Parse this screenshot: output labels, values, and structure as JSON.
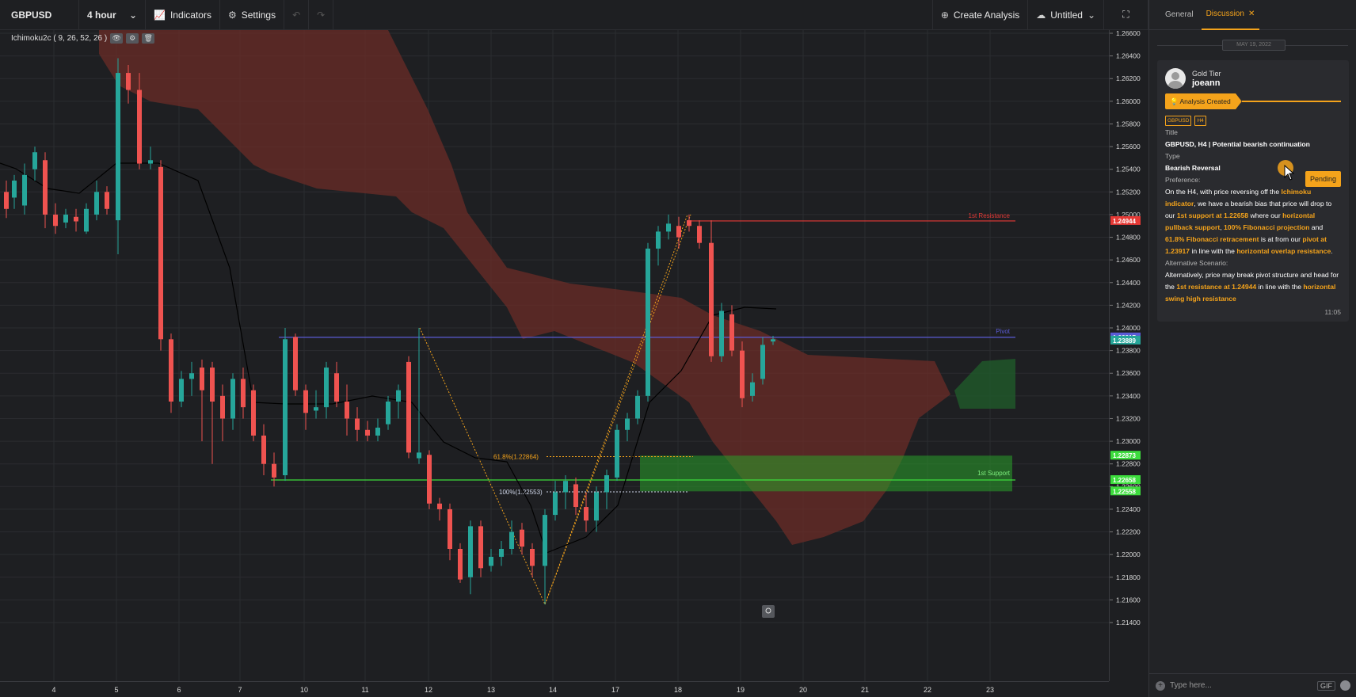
{
  "toolbar": {
    "symbol": "GBPUSD",
    "interval": "4 hour",
    "indicators": "Indicators",
    "settings": "Settings",
    "create_analysis": "Create Analysis",
    "layout_name": "Untitled"
  },
  "indicator": {
    "label": "Ichimoku2c ( 9, 26, 52, 26 )"
  },
  "chart": {
    "price_ticks": [
      "1.26600",
      "1.26400",
      "1.26200",
      "1.26000",
      "1.25800",
      "1.25600",
      "1.25400",
      "1.25200",
      "1.25000",
      "1.24800",
      "1.24600",
      "1.24400",
      "1.24200",
      "1.24000",
      "1.23800",
      "1.23600",
      "1.23400",
      "1.23200",
      "1.23000",
      "1.22800",
      "1.22600",
      "1.22400",
      "1.22200",
      "1.22000",
      "1.21800",
      "1.21600",
      "1.21400"
    ],
    "date_ticks": [
      "4",
      "5",
      "6",
      "7",
      "10",
      "11",
      "12",
      "13",
      "14",
      "17",
      "18",
      "19",
      "20",
      "21",
      "22",
      "23"
    ],
    "levels": {
      "resistance": {
        "label": "1st Resistance",
        "price": 1.24944,
        "tag": "1.24944"
      },
      "pivot": {
        "label": "Pivot",
        "price": 1.23917,
        "tag": "1.23917",
        "tag2": "1.23889"
      },
      "support": {
        "label": "1st Support",
        "price": 1.22658,
        "tag": "1.22658",
        "tag_top": "1.22873",
        "tag_bottom": "1.22558",
        "tag_mid": "1.22600"
      }
    },
    "fib": {
      "f618": "61.8%(1.22864)",
      "f100": "100%(1.22553)"
    },
    "colors": {
      "bull": "#26a69a",
      "bear": "#ef5350",
      "cloud_bear": "#6b2c27",
      "cloud_bull": "#1f5a2a",
      "support_zone": "#2aa12a",
      "resistance": "#e53935",
      "pivot": "#5b5bd6",
      "fib": "#f4a31b"
    }
  },
  "panel": {
    "tabs": [
      "General",
      "Discussion"
    ],
    "date": "MAY 19, 2022",
    "user_tier": "Gold Tier",
    "username": "joeann",
    "created": "Analysis Created",
    "tags": [
      "GBPUSD",
      "H4"
    ],
    "status": "Pending",
    "title_label": "Title",
    "title": "GBPUSD, H4 | Potential bearish continuation",
    "type_label": "Type",
    "type": "Bearish Reversal",
    "pref_label": "Preference:",
    "pref": [
      [
        "On the H4, with price reversing off the ",
        false
      ],
      [
        "Ichimoku indicator",
        true
      ],
      [
        ", we have a bearish bias that price will drop to our ",
        false
      ],
      [
        "1st support at 1.22658",
        true
      ],
      [
        " where our ",
        false
      ],
      [
        "horizontal pullback support",
        true
      ],
      [
        ", ",
        false
      ],
      [
        "100% Fibonacci projection",
        true
      ],
      [
        " and ",
        false
      ],
      [
        "61.8% Fibonacci retracement",
        true
      ],
      [
        " is at from our ",
        false
      ],
      [
        "pivot at 1.23917",
        true
      ],
      [
        " in line with the ",
        false
      ],
      [
        "horizontal overlap resistance",
        true
      ],
      [
        ".",
        false
      ]
    ],
    "alt_label": "Alternative Scenario:",
    "alt": [
      [
        "Alternatively, price may break pivot structure and head for the ",
        false
      ],
      [
        "1st resistance at 1.24944",
        true
      ],
      [
        " in line with the ",
        false
      ],
      [
        "horizontal swing high resistance",
        true
      ]
    ],
    "time": "11:05",
    "composer_placeholder": "Type here...",
    "gif": "GIF"
  }
}
